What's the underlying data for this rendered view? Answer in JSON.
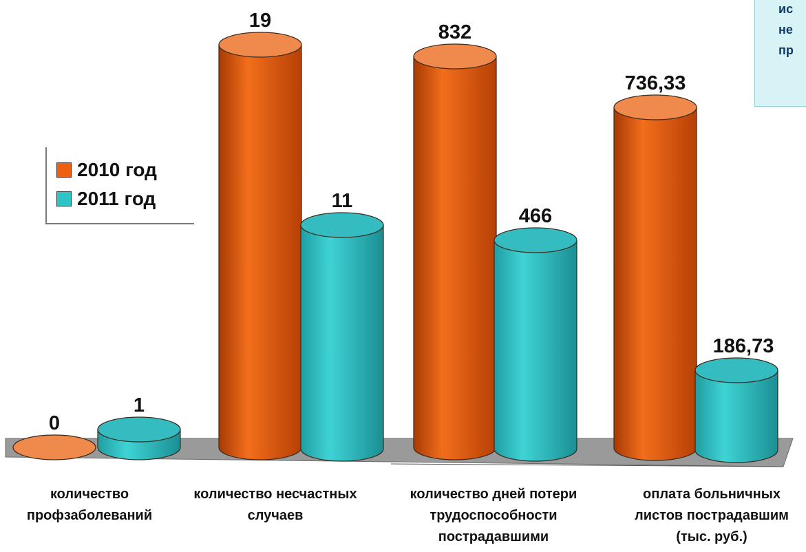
{
  "note": {
    "lines": [
      "ис",
      "не",
      "пр"
    ]
  },
  "legend": {
    "items": [
      {
        "label": "2010 год",
        "color": "#ec6010"
      },
      {
        "label": "2011 год",
        "color": "#2ec3c6"
      }
    ]
  },
  "chart_data": {
    "type": "bar",
    "categories": [
      [
        "количество",
        "профзаболеваний"
      ],
      [
        "количество несчастных",
        "случаев"
      ],
      [
        "количество дней потери",
        "трудоспособности",
        "пострадавшими"
      ],
      [
        "оплата больничных",
        "листов пострадавшим",
        "(тыс. руб.)"
      ]
    ],
    "series": [
      {
        "name": "2010 год",
        "color": "#ec6010",
        "values": [
          0,
          19,
          832,
          736.33
        ],
        "labels": [
          "0",
          "19",
          "832",
          "736,33"
        ]
      },
      {
        "name": "2011 год",
        "color": "#2ec3c6",
        "values": [
          1,
          11,
          466,
          186.73
        ],
        "labels": [
          "1",
          "11",
          "466",
          "186,73"
        ]
      }
    ],
    "legend_position": "left",
    "grid": false
  }
}
